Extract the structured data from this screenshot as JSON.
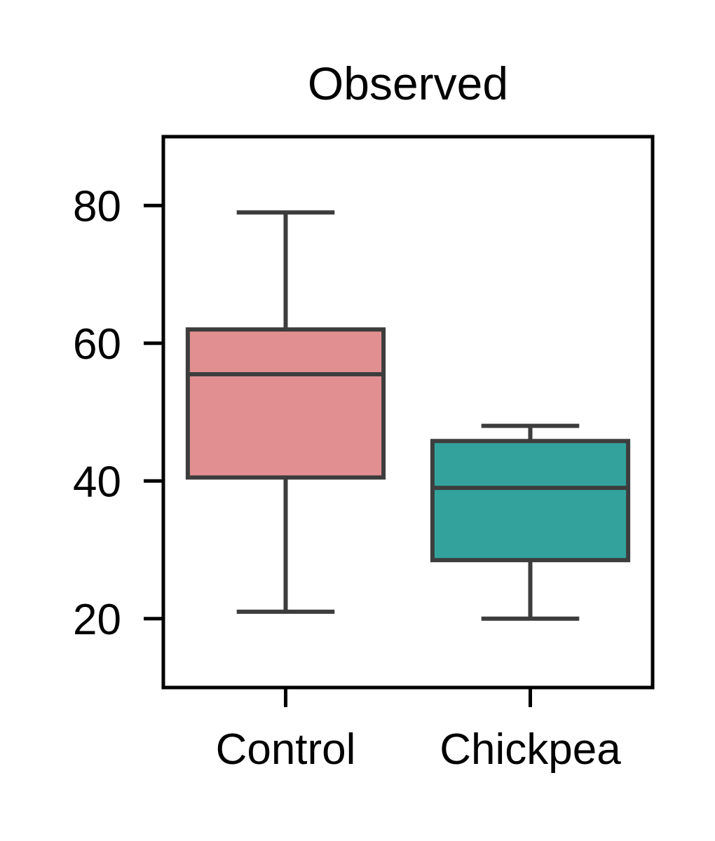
{
  "chart_data": {
    "type": "box",
    "title": "Observed",
    "xlabel": "",
    "ylabel": "",
    "categories": [
      "Control",
      "Chickpea"
    ],
    "ylim": [
      10,
      90
    ],
    "yticks": [
      20,
      40,
      60,
      80
    ],
    "grid": false,
    "boxes": [
      {
        "category": "Control",
        "whisker_low": 21,
        "q1": 40.5,
        "median": 55.5,
        "q3": 62,
        "whisker_high": 79,
        "color": "#e28f91"
      },
      {
        "category": "Chickpea",
        "whisker_low": 20,
        "q1": 28.5,
        "median": 39,
        "q3": 45.8,
        "whisker_high": 48,
        "color": "#33a29c"
      }
    ],
    "line_color": "#3d3d3d"
  }
}
